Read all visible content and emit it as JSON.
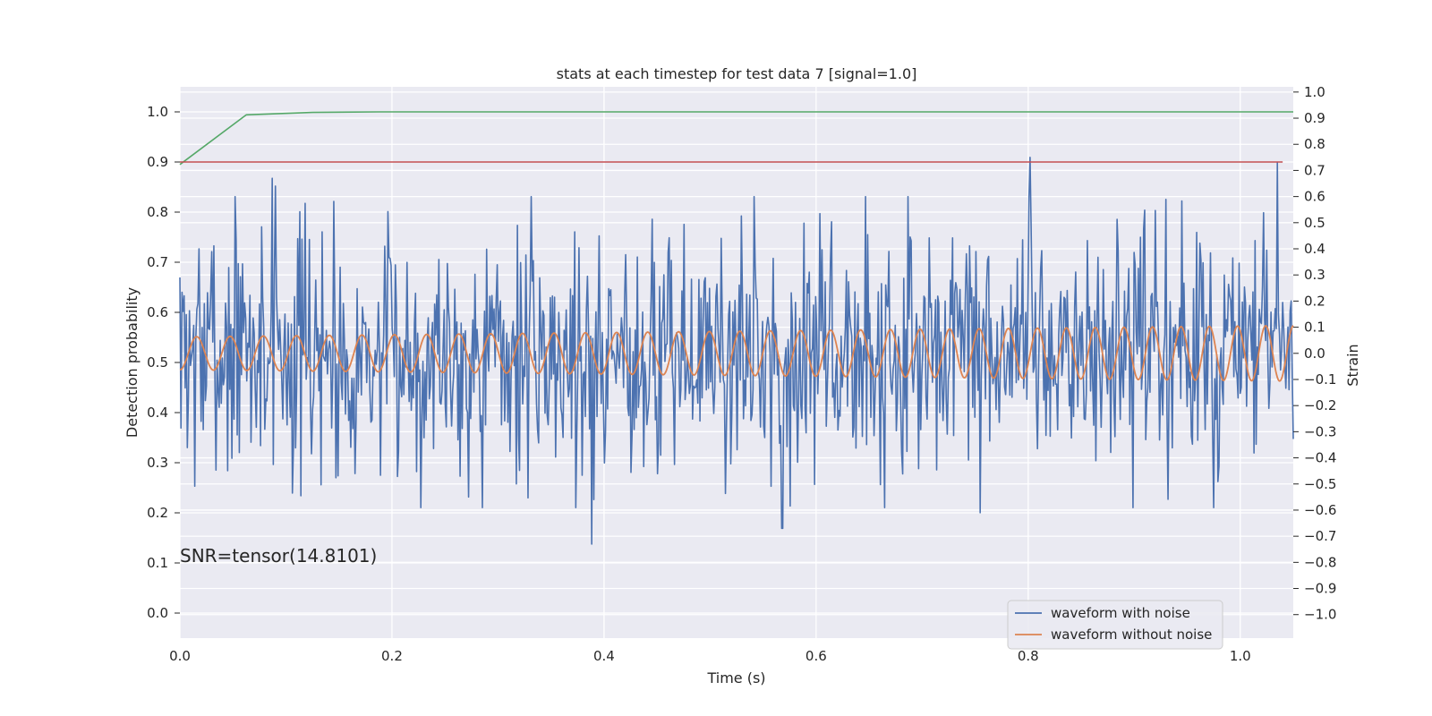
{
  "chart_data": {
    "type": "line",
    "title": "stats at each timestep for test data 7 [signal=1.0]",
    "xlabel": "Time (s)",
    "ylabel_left": "Detection probability",
    "ylabel_right": "Strain",
    "xlim": [
      0.0,
      1.05
    ],
    "ylim_left": [
      -0.05,
      1.05
    ],
    "ylim_right": [
      -1.09,
      1.02
    ],
    "x_ticks": [
      0.0,
      0.2,
      0.4,
      0.6,
      0.8,
      1.0
    ],
    "x_tick_labels": [
      "0.0",
      "0.2",
      "0.4",
      "0.6",
      "0.8",
      "1.0"
    ],
    "y_left_ticks": [
      0.0,
      0.1,
      0.2,
      0.3,
      0.4,
      0.5,
      0.6,
      0.7,
      0.8,
      0.9,
      1.0
    ],
    "y_left_tick_labels": [
      "0.0",
      "0.1",
      "0.2",
      "0.3",
      "0.4",
      "0.5",
      "0.6",
      "0.7",
      "0.8",
      "0.9",
      "1.0"
    ],
    "y_right_ticks": [
      -1.0,
      -0.9,
      -0.8,
      -0.7,
      -0.6,
      -0.5,
      -0.4,
      -0.3,
      -0.2,
      -0.1,
      0.0,
      0.1,
      0.2,
      0.3,
      0.4,
      0.5,
      0.6,
      0.7,
      0.8,
      0.9,
      1.0
    ],
    "y_right_tick_labels": [
      "−1.0",
      "−0.9",
      "−0.8",
      "−0.7",
      "−0.6",
      "−0.5",
      "−0.4",
      "−0.3",
      "−0.2",
      "−0.1",
      "0.0",
      "0.1",
      "0.2",
      "0.3",
      "0.4",
      "0.5",
      "0.6",
      "0.7",
      "0.8",
      "0.9",
      "1.0"
    ],
    "grid": true,
    "annotation": "SNR=tensor(14.8101)",
    "legend": {
      "placement": "lower-right",
      "entries": [
        "waveform with noise",
        "waveform without noise"
      ]
    },
    "series": [
      {
        "axis": "left",
        "color": "#55a868",
        "x": [
          0.0,
          0.0625,
          0.125,
          0.1875,
          0.25,
          0.5,
          0.75,
          1.0,
          1.05
        ],
        "y": [
          0.895,
          0.994,
          0.999,
          1.0,
          1.0,
          1.0,
          1.0,
          1.0,
          1.0
        ]
      },
      {
        "axis": "left",
        "color": "#c44e52",
        "x": [
          0.0,
          1.04
        ],
        "y": [
          0.9,
          0.9
        ]
      },
      {
        "name": "waveform with noise",
        "axis": "right",
        "color": "#4c72b0",
        "style": "noise",
        "x_range": [
          0.0,
          1.05
        ],
        "num_points": 1050,
        "y_range": [
          -0.72,
          0.75
        ],
        "highlights": [
          {
            "x": 0.052,
            "y": 0.6
          },
          {
            "x": 0.087,
            "y": 0.67
          },
          {
            "x": 0.09,
            "y": 0.64
          },
          {
            "x": 0.388,
            "y": -0.73
          },
          {
            "x": 0.568,
            "y": -0.67
          },
          {
            "x": 0.802,
            "y": 0.75
          },
          {
            "x": 0.755,
            "y": -0.61
          },
          {
            "x": 1.035,
            "y": 0.73
          }
        ]
      },
      {
        "name": "waveform without noise",
        "axis": "right",
        "color": "#dd8452",
        "style": "sinusoid",
        "x_range": [
          0.0,
          1.05
        ],
        "amplitude_start": 0.065,
        "amplitude_end": 0.11,
        "frequency_start_hz": 31.5,
        "frequency_end_hz": 38.0
      }
    ]
  }
}
